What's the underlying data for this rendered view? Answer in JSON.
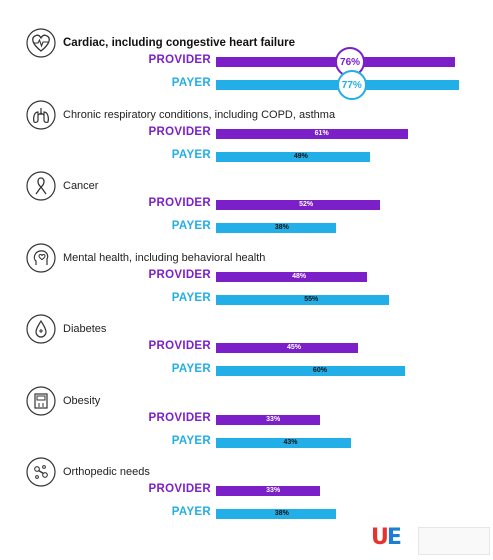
{
  "colors": {
    "provider": "#7b1fc9",
    "payer": "#22aee6",
    "provider_label": "#7b1fc9",
    "payer_label": "#22aee6"
  },
  "series_labels": {
    "provider": "PROVIDER",
    "payer": "PAYER"
  },
  "chart_data": {
    "type": "bar",
    "orientation": "horizontal",
    "categories": [
      "Cardiac, including congestive heart failure",
      "Chronic respiratory conditions, including COPD, asthma",
      "Cancer",
      "Mental health, including behavioral health",
      "Diabetes",
      "Obesity",
      "Orthopedic needs"
    ],
    "series": [
      {
        "name": "PROVIDER",
        "values": [
          76,
          61,
          52,
          48,
          45,
          33,
          33
        ]
      },
      {
        "name": "PAYER",
        "values": [
          77,
          49,
          38,
          55,
          60,
          43,
          38
        ]
      }
    ],
    "value_suffix": "%",
    "icons": [
      "heart-icon",
      "lungs-icon",
      "ribbon-icon",
      "head-icon",
      "drop-icon",
      "scale-icon",
      "bones-icon"
    ],
    "xlim": [
      0,
      100
    ],
    "grid": false,
    "legend": "none"
  },
  "logo": {
    "mark_u": "U",
    "mark_e": "E"
  }
}
